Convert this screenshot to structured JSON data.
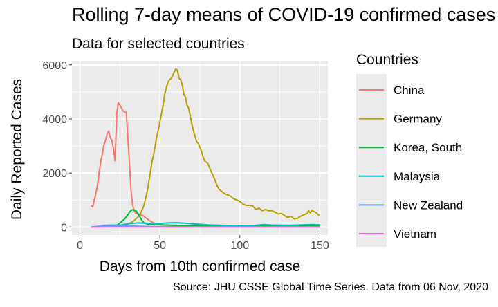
{
  "chart_data": {
    "type": "line",
    "title": "Rolling 7-day means of COVID-19 confirmed cases",
    "subtitle": "Data for selected countries",
    "caption": "Source: JHU CSSE Global Time Series. Data from 06 Nov, 2020",
    "xlabel": "Days from 10th confirmed case",
    "ylabel": "Daily Reported Cases",
    "xlim": [
      -5,
      155
    ],
    "ylim": [
      -300,
      6150
    ],
    "x_ticks": [
      0,
      50,
      100,
      150
    ],
    "x_minor": [
      25,
      75,
      125
    ],
    "y_ticks": [
      0,
      2000,
      4000,
      6000
    ],
    "y_minor": [
      1000,
      3000,
      5000
    ],
    "grid": true,
    "legend": {
      "title": "Countries",
      "position": "right"
    },
    "series": [
      {
        "name": "China",
        "color": "#F8766D",
        "points": [
          [
            7,
            800
          ],
          [
            8,
            750
          ],
          [
            9,
            1000
          ],
          [
            10,
            1250
          ],
          [
            11,
            1550
          ],
          [
            12,
            2000
          ],
          [
            13,
            2400
          ],
          [
            14,
            2700
          ],
          [
            15,
            3050
          ],
          [
            16,
            3200
          ],
          [
            17,
            3450
          ],
          [
            18,
            3550
          ],
          [
            19,
            3300
          ],
          [
            20,
            3200
          ],
          [
            21,
            2900
          ],
          [
            22,
            2450
          ],
          [
            23,
            4200
          ],
          [
            24,
            4600
          ],
          [
            25,
            4500
          ],
          [
            26,
            4400
          ],
          [
            27,
            4300
          ],
          [
            28,
            4250
          ],
          [
            29,
            4250
          ],
          [
            30,
            3300
          ],
          [
            31,
            2300
          ],
          [
            32,
            1300
          ],
          [
            33,
            800
          ],
          [
            34,
            600
          ],
          [
            35,
            500
          ],
          [
            37,
            480
          ],
          [
            38,
            450
          ],
          [
            40,
            400
          ],
          [
            42,
            300
          ],
          [
            44,
            220
          ],
          [
            47,
            120
          ],
          [
            52,
            70
          ],
          [
            60,
            50
          ],
          [
            70,
            40
          ],
          [
            85,
            60
          ],
          [
            100,
            30
          ],
          [
            120,
            25
          ],
          [
            135,
            20
          ],
          [
            150,
            20
          ]
        ]
      },
      {
        "name": "Germany",
        "color": "#B79F00",
        "points": [
          [
            7,
            5
          ],
          [
            20,
            20
          ],
          [
            25,
            40
          ],
          [
            30,
            100
          ],
          [
            33,
            200
          ],
          [
            36,
            350
          ],
          [
            38,
            500
          ],
          [
            40,
            800
          ],
          [
            42,
            1300
          ],
          [
            44,
            2000
          ],
          [
            45,
            2400
          ],
          [
            46,
            2650
          ],
          [
            47,
            3000
          ],
          [
            48,
            3350
          ],
          [
            49,
            3600
          ],
          [
            50,
            3900
          ],
          [
            51,
            4200
          ],
          [
            52,
            4500
          ],
          [
            53,
            4900
          ],
          [
            54,
            5150
          ],
          [
            55,
            5350
          ],
          [
            56,
            5450
          ],
          [
            57,
            5500
          ],
          [
            58,
            5600
          ],
          [
            59,
            5750
          ],
          [
            60,
            5850
          ],
          [
            61,
            5800
          ],
          [
            62,
            5500
          ],
          [
            63,
            5450
          ],
          [
            64,
            5250
          ],
          [
            65,
            4900
          ],
          [
            66,
            4800
          ],
          [
            67,
            4500
          ],
          [
            68,
            4400
          ],
          [
            69,
            4100
          ],
          [
            70,
            3800
          ],
          [
            71,
            3550
          ],
          [
            72,
            3350
          ],
          [
            73,
            3150
          ],
          [
            74,
            3100
          ],
          [
            75,
            2950
          ],
          [
            76,
            2800
          ],
          [
            77,
            2600
          ],
          [
            78,
            2450
          ],
          [
            79,
            2400
          ],
          [
            80,
            2350
          ],
          [
            81,
            2200
          ],
          [
            82,
            2050
          ],
          [
            83,
            1950
          ],
          [
            84,
            1800
          ],
          [
            85,
            1650
          ],
          [
            86,
            1500
          ],
          [
            87,
            1400
          ],
          [
            88,
            1350
          ],
          [
            89,
            1300
          ],
          [
            90,
            1250
          ],
          [
            92,
            1200
          ],
          [
            94,
            1150
          ],
          [
            96,
            1050
          ],
          [
            98,
            1000
          ],
          [
            100,
            950
          ],
          [
            102,
            850
          ],
          [
            104,
            800
          ],
          [
            106,
            800
          ],
          [
            108,
            780
          ],
          [
            110,
            650
          ],
          [
            112,
            700
          ],
          [
            114,
            600
          ],
          [
            116,
            650
          ],
          [
            118,
            600
          ],
          [
            120,
            600
          ],
          [
            122,
            550
          ],
          [
            124,
            480
          ],
          [
            126,
            500
          ],
          [
            128,
            420
          ],
          [
            130,
            350
          ],
          [
            132,
            400
          ],
          [
            134,
            300
          ],
          [
            136,
            320
          ],
          [
            138,
            400
          ],
          [
            140,
            450
          ],
          [
            142,
            500
          ],
          [
            143,
            600
          ],
          [
            144,
            520
          ],
          [
            145,
            620
          ],
          [
            146,
            580
          ],
          [
            147,
            550
          ],
          [
            148,
            520
          ],
          [
            149,
            450
          ],
          [
            150,
            450
          ]
        ]
      },
      {
        "name": "Korea, South",
        "color": "#00BA38",
        "points": [
          [
            7,
            5
          ],
          [
            15,
            10
          ],
          [
            20,
            30
          ],
          [
            22,
            50
          ],
          [
            24,
            100
          ],
          [
            26,
            200
          ],
          [
            28,
            300
          ],
          [
            30,
            450
          ],
          [
            31,
            550
          ],
          [
            32,
            620
          ],
          [
            33,
            640
          ],
          [
            34,
            620
          ],
          [
            35,
            600
          ],
          [
            36,
            520
          ],
          [
            37,
            420
          ],
          [
            38,
            320
          ],
          [
            39,
            220
          ],
          [
            40,
            160
          ],
          [
            42,
            110
          ],
          [
            45,
            90
          ],
          [
            50,
            80
          ],
          [
            60,
            60
          ],
          [
            75,
            50
          ],
          [
            90,
            40
          ],
          [
            100,
            40
          ],
          [
            110,
            35
          ],
          [
            120,
            30
          ],
          [
            130,
            40
          ],
          [
            140,
            50
          ],
          [
            150,
            40
          ]
        ]
      },
      {
        "name": "Malaysia",
        "color": "#00BFC4",
        "points": [
          [
            7,
            5
          ],
          [
            20,
            20
          ],
          [
            25,
            60
          ],
          [
            30,
            120
          ],
          [
            34,
            140
          ],
          [
            37,
            150
          ],
          [
            40,
            140
          ],
          [
            45,
            120
          ],
          [
            50,
            130
          ],
          [
            55,
            150
          ],
          [
            60,
            160
          ],
          [
            65,
            140
          ],
          [
            70,
            120
          ],
          [
            75,
            100
          ],
          [
            80,
            80
          ],
          [
            90,
            60
          ],
          [
            100,
            50
          ],
          [
            110,
            60
          ],
          [
            115,
            90
          ],
          [
            120,
            70
          ],
          [
            130,
            60
          ],
          [
            140,
            80
          ],
          [
            145,
            90
          ],
          [
            150,
            80
          ]
        ]
      },
      {
        "name": "New Zealand",
        "color": "#619CFF",
        "points": [
          [
            7,
            5
          ],
          [
            12,
            30
          ],
          [
            15,
            60
          ],
          [
            20,
            70
          ],
          [
            25,
            60
          ],
          [
            30,
            40
          ],
          [
            40,
            20
          ],
          [
            50,
            10
          ],
          [
            70,
            5
          ],
          [
            100,
            5
          ],
          [
            150,
            5
          ]
        ]
      },
      {
        "name": "Vietnam",
        "color": "#F564E3",
        "points": [
          [
            7,
            2
          ],
          [
            30,
            5
          ],
          [
            60,
            3
          ],
          [
            100,
            2
          ],
          [
            150,
            2
          ]
        ]
      }
    ]
  }
}
